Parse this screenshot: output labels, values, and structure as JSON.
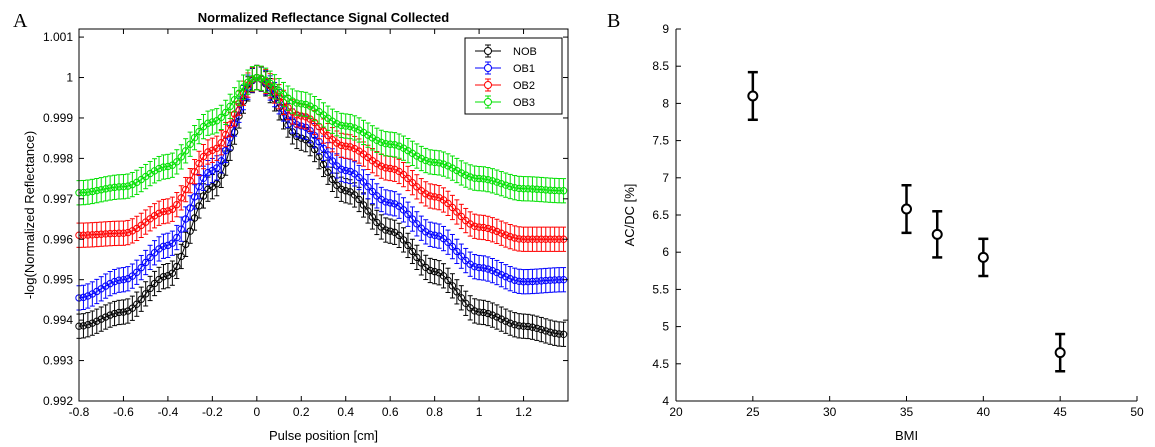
{
  "panel_labels": [
    "A",
    "B"
  ],
  "chart_data": [
    {
      "type": "line",
      "title": "Normalized Reflectance Signal Collected",
      "xlabel": "Pulse position [cm]",
      "ylabel": "-log(Normalized Reflectance)",
      "xlim": [
        -0.8,
        1.4
      ],
      "ylim": [
        0.992,
        1.0012
      ],
      "xticks": [
        -0.8,
        -0.6,
        -0.4,
        -0.2,
        0,
        0.2,
        0.4,
        0.6,
        0.8,
        1,
        1.2
      ],
      "xtick_labels": [
        "-0.8",
        "-0.6",
        "-0.4",
        "-0.2",
        "0",
        "0.2",
        "0.4",
        "0.6",
        "0.8",
        "1",
        "1.2"
      ],
      "yticks": [
        0.992,
        0.993,
        0.994,
        0.995,
        0.996,
        0.997,
        0.998,
        0.999,
        1,
        1.001
      ],
      "ytick_labels": [
        "0.992",
        "0.993",
        "0.994",
        "0.995",
        "0.996",
        "0.997",
        "0.998",
        "0.999",
        "1",
        "1.001"
      ],
      "legend_position": "top-right",
      "marker": "open-circle",
      "error_bars": true,
      "series": [
        {
          "name": "NOB",
          "color": "#000000",
          "points": [
            [
              -0.8,
              0.99385
            ],
            [
              -0.6,
              0.9942
            ],
            [
              -0.4,
              0.9951
            ],
            [
              -0.2,
              0.9973
            ],
            [
              0,
              1.0
            ],
            [
              0.2,
              0.9985
            ],
            [
              0.4,
              0.9972
            ],
            [
              0.6,
              0.9962
            ],
            [
              0.8,
              0.9952
            ],
            [
              1.0,
              0.9942
            ],
            [
              1.2,
              0.99385
            ],
            [
              1.38,
              0.99365
            ]
          ],
          "err": 0.0003
        },
        {
          "name": "OB1",
          "color": "#0000ff",
          "points": [
            [
              -0.8,
              0.99455
            ],
            [
              -0.6,
              0.995
            ],
            [
              -0.4,
              0.99585
            ],
            [
              -0.2,
              0.9977
            ],
            [
              0,
              1.0
            ],
            [
              0.2,
              0.9988
            ],
            [
              0.4,
              0.9977
            ],
            [
              0.6,
              0.9969
            ],
            [
              0.8,
              0.9961
            ],
            [
              1.0,
              0.9953
            ],
            [
              1.2,
              0.99495
            ],
            [
              1.38,
              0.995
            ]
          ],
          "err": 0.0003
        },
        {
          "name": "OB2",
          "color": "#ff0000",
          "points": [
            [
              -0.8,
              0.9961
            ],
            [
              -0.6,
              0.99615
            ],
            [
              -0.4,
              0.9967
            ],
            [
              -0.2,
              0.9982
            ],
            [
              0,
              1.0
            ],
            [
              0.2,
              0.99905
            ],
            [
              0.4,
              0.9983
            ],
            [
              0.6,
              0.99775
            ],
            [
              0.8,
              0.99705
            ],
            [
              1.0,
              0.9963
            ],
            [
              1.2,
              0.996
            ],
            [
              1.38,
              0.996
            ]
          ],
          "err": 0.0003
        },
        {
          "name": "OB3",
          "color": "#00e000",
          "points": [
            [
              -0.8,
              0.99715
            ],
            [
              -0.6,
              0.9973
            ],
            [
              -0.4,
              0.9978
            ],
            [
              -0.2,
              0.9989
            ],
            [
              0,
              1.0
            ],
            [
              0.2,
              0.99935
            ],
            [
              0.4,
              0.9988
            ],
            [
              0.6,
              0.99835
            ],
            [
              0.8,
              0.9979
            ],
            [
              1.0,
              0.9975
            ],
            [
              1.2,
              0.99725
            ],
            [
              1.38,
              0.9972
            ]
          ],
          "err": 0.0003
        }
      ]
    },
    {
      "type": "scatter",
      "title": "",
      "xlabel": "BMI",
      "ylabel": "AC/DC [%]",
      "xlim": [
        20,
        50
      ],
      "ylim": [
        4,
        9
      ],
      "xticks": [
        20,
        25,
        30,
        35,
        40,
        45,
        50
      ],
      "xtick_labels": [
        "20",
        "25",
        "30",
        "35",
        "40",
        "45",
        "50"
      ],
      "yticks": [
        4,
        4.5,
        5,
        5.5,
        6,
        6.5,
        7,
        7.5,
        8,
        8.5,
        9
      ],
      "ytick_labels": [
        "4",
        "4.5",
        "5",
        "5.5",
        "6",
        "6.5",
        "7",
        "7.5",
        "8",
        "8.5",
        "9"
      ],
      "marker": "open-circle",
      "color": "#000000",
      "x": [
        25,
        35,
        37,
        40,
        45
      ],
      "y": [
        8.1,
        6.58,
        6.24,
        5.93,
        4.65
      ],
      "err": [
        0.32,
        0.32,
        0.31,
        0.25,
        0.25
      ]
    }
  ]
}
